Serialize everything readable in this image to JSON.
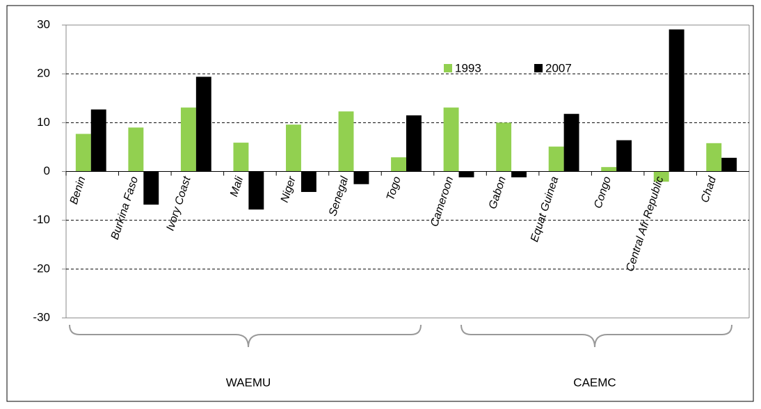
{
  "chart_data": {
    "type": "bar",
    "categories": [
      "Benin",
      "Burkina Faso",
      "Ivory Coast",
      "Mali",
      "Niger",
      "Senegal",
      "Togo",
      "Cameroon",
      "Gabon",
      "Equat Guinea",
      "Congo",
      "Central Afr Republic",
      "Chad"
    ],
    "series": [
      {
        "name": "1993",
        "color": "#92d050",
        "values": [
          7.7,
          9.0,
          13.1,
          5.9,
          9.6,
          12.3,
          2.9,
          13.1,
          10.0,
          5.1,
          0.9,
          -2.1,
          5.8
        ]
      },
      {
        "name": "2007",
        "color": "#000000",
        "values": [
          12.7,
          -6.8,
          19.4,
          -7.8,
          -4.2,
          -2.6,
          11.5,
          -1.2,
          -1.2,
          11.8,
          6.4,
          29.1,
          2.8
        ]
      }
    ],
    "ylim": [
      -30,
      30
    ],
    "yticks": [
      -30,
      -20,
      -10,
      0,
      10,
      20,
      30
    ],
    "grid": true,
    "groups": [
      "WAEMU",
      "CAEMC"
    ]
  }
}
